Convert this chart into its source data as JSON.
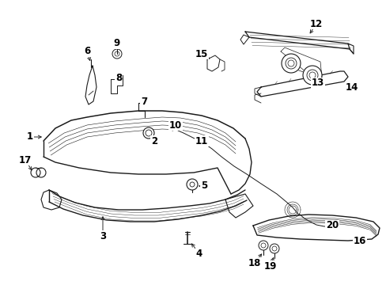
{
  "bg_color": "#ffffff",
  "line_color": "#1a1a1a",
  "fig_width": 4.89,
  "fig_height": 3.6,
  "dpi": 100,
  "font_size": 8.5
}
